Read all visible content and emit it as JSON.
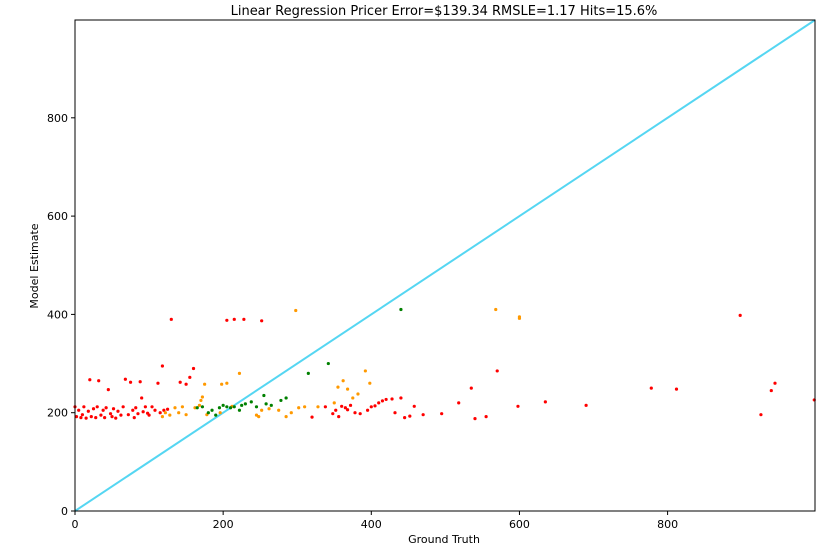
{
  "chart_data": {
    "type": "scatter",
    "title": "Linear Regression Pricer Error=$139.34 RMSLE=1.17 Hits=15.6%",
    "xlabel": "Ground Truth",
    "ylabel": "Model Estimate",
    "xlim": [
      0,
      999
    ],
    "ylim": [
      0,
      999
    ],
    "xticks": [
      0,
      200,
      400,
      600,
      800
    ],
    "yticks": [
      0,
      200,
      400,
      600,
      800
    ],
    "grid": false,
    "reference_line": {
      "from": [
        0,
        0
      ],
      "to": [
        999,
        999
      ],
      "color": "#55d6f2"
    },
    "series": [
      {
        "color": "#ff0000",
        "points": [
          [
            0,
            212
          ],
          [
            2,
            192
          ],
          [
            5,
            205
          ],
          [
            8,
            190
          ],
          [
            10,
            196
          ],
          [
            12,
            212
          ],
          [
            15,
            189
          ],
          [
            18,
            203
          ],
          [
            20,
            267
          ],
          [
            22,
            192
          ],
          [
            25,
            208
          ],
          [
            28,
            190
          ],
          [
            30,
            212
          ],
          [
            32,
            265
          ],
          [
            35,
            195
          ],
          [
            38,
            205
          ],
          [
            40,
            190
          ],
          [
            42,
            210
          ],
          [
            45,
            247
          ],
          [
            48,
            198
          ],
          [
            50,
            192
          ],
          [
            52,
            208
          ],
          [
            55,
            189
          ],
          [
            58,
            203
          ],
          [
            62,
            195
          ],
          [
            65,
            212
          ],
          [
            68,
            268
          ],
          [
            72,
            196
          ],
          [
            75,
            262
          ],
          [
            78,
            205
          ],
          [
            80,
            190
          ],
          [
            82,
            210
          ],
          [
            85,
            198
          ],
          [
            88,
            263
          ],
          [
            90,
            230
          ],
          [
            92,
            202
          ],
          [
            95,
            212
          ],
          [
            98,
            199
          ],
          [
            100,
            195
          ],
          [
            104,
            212
          ],
          [
            108,
            205
          ],
          [
            112,
            260
          ],
          [
            115,
            200
          ],
          [
            118,
            295
          ],
          [
            120,
            205
          ],
          [
            125,
            207
          ],
          [
            130,
            390
          ],
          [
            142,
            262
          ],
          [
            150,
            258
          ],
          [
            155,
            272
          ],
          [
            160,
            290
          ],
          [
            205,
            388
          ],
          [
            215,
            390
          ],
          [
            228,
            390
          ],
          [
            252,
            387
          ],
          [
            320,
            191
          ],
          [
            338,
            212
          ],
          [
            348,
            198
          ],
          [
            352,
            205
          ],
          [
            356,
            192
          ],
          [
            360,
            213
          ],
          [
            365,
            210
          ],
          [
            368,
            206
          ],
          [
            372,
            215
          ],
          [
            378,
            200
          ],
          [
            385,
            198
          ],
          [
            395,
            205
          ],
          [
            400,
            212
          ],
          [
            405,
            214
          ],
          [
            410,
            220
          ],
          [
            415,
            224
          ],
          [
            420,
            227
          ],
          [
            428,
            228
          ],
          [
            432,
            200
          ],
          [
            440,
            230
          ],
          [
            445,
            190
          ],
          [
            452,
            193
          ],
          [
            458,
            213
          ],
          [
            470,
            196
          ],
          [
            495,
            198
          ],
          [
            518,
            220
          ],
          [
            535,
            250
          ],
          [
            540,
            188
          ],
          [
            555,
            192
          ],
          [
            570,
            285
          ],
          [
            598,
            213
          ],
          [
            635,
            222
          ],
          [
            690,
            215
          ],
          [
            778,
            250
          ],
          [
            812,
            248
          ],
          [
            898,
            398
          ],
          [
            926,
            196
          ],
          [
            940,
            245
          ],
          [
            945,
            260
          ],
          [
            998,
            226
          ]
        ]
      },
      {
        "color": "#ff9900",
        "points": [
          [
            118,
            192
          ],
          [
            122,
            200
          ],
          [
            128,
            195
          ],
          [
            135,
            210
          ],
          [
            140,
            200
          ],
          [
            145,
            212
          ],
          [
            150,
            196
          ],
          [
            162,
            210
          ],
          [
            168,
            215
          ],
          [
            170,
            225
          ],
          [
            172,
            232
          ],
          [
            175,
            258
          ],
          [
            178,
            196
          ],
          [
            196,
            200
          ],
          [
            198,
            258
          ],
          [
            205,
            260
          ],
          [
            212,
            213
          ],
          [
            222,
            280
          ],
          [
            245,
            195
          ],
          [
            248,
            192
          ],
          [
            252,
            205
          ],
          [
            262,
            208
          ],
          [
            275,
            205
          ],
          [
            285,
            192
          ],
          [
            292,
            200
          ],
          [
            298,
            408
          ],
          [
            302,
            210
          ],
          [
            310,
            212
          ],
          [
            328,
            212
          ],
          [
            350,
            220
          ],
          [
            355,
            252
          ],
          [
            362,
            265
          ],
          [
            368,
            248
          ],
          [
            375,
            230
          ],
          [
            382,
            238
          ],
          [
            392,
            285
          ],
          [
            398,
            260
          ],
          [
            568,
            410
          ],
          [
            600,
            392
          ],
          [
            600,
            395
          ]
        ]
      },
      {
        "color": "#008000",
        "points": [
          [
            165,
            210
          ],
          [
            172,
            212
          ],
          [
            180,
            200
          ],
          [
            185,
            205
          ],
          [
            190,
            195
          ],
          [
            195,
            210
          ],
          [
            200,
            215
          ],
          [
            205,
            212
          ],
          [
            210,
            210
          ],
          [
            215,
            212
          ],
          [
            222,
            205
          ],
          [
            225,
            215
          ],
          [
            230,
            218
          ],
          [
            238,
            222
          ],
          [
            245,
            212
          ],
          [
            255,
            235
          ],
          [
            258,
            218
          ],
          [
            265,
            215
          ],
          [
            278,
            225
          ],
          [
            285,
            230
          ],
          [
            315,
            280
          ],
          [
            342,
            300
          ],
          [
            440,
            410
          ]
        ]
      }
    ]
  }
}
